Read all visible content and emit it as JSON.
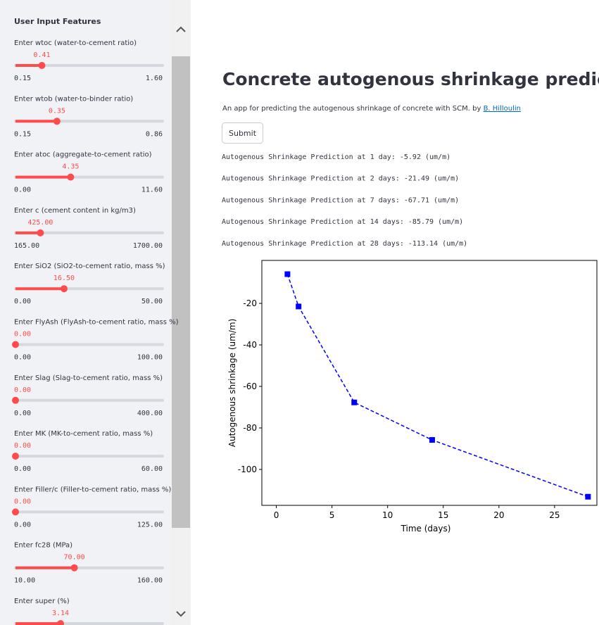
{
  "sidebar": {
    "title": "User Input Features",
    "sliders": [
      {
        "label": "Enter wtoc (water-to-cement ratio)",
        "value": 0.41,
        "min": 0.15,
        "max": {
          "value": 1.6,
          "label": "1.60"
        }
      },
      {
        "label": "Enter wtob (water-to-binder ratio)",
        "value": 0.35,
        "min": 0.15,
        "max": 0.86
      },
      {
        "label": "Enter atoc (aggregate-to-cement ratio)",
        "value": 4.35,
        "min": {
          "value": 0,
          "label": "0.00"
        },
        "max": {
          "value": 11.6,
          "label": "11.60"
        }
      },
      {
        "label": "Enter c (cement content in kg/m3)",
        "value": {
          "value": 425,
          "label": "425.00"
        },
        "min": {
          "value": 165,
          "label": "165.00"
        },
        "max": {
          "value": 1700,
          "label": "1700.00"
        }
      },
      {
        "label": "Enter SiO2 (SiO2-to-cement ratio, mass %)",
        "value": {
          "value": 16.5,
          "label": "16.50"
        },
        "min": {
          "value": 0,
          "label": "0.00"
        },
        "max": {
          "value": 50,
          "label": "50.00"
        }
      },
      {
        "label": "Enter FlyAsh (FlyAsh-to-cement ratio, mass %)",
        "value": {
          "value": 0,
          "label": "0.00"
        },
        "min": {
          "value": 0,
          "label": "0.00"
        },
        "max": {
          "value": 100,
          "label": "100.00"
        }
      },
      {
        "label": "Enter Slag (Slag-to-cement ratio, mass %)",
        "value": {
          "value": 0,
          "label": "0.00"
        },
        "min": {
          "value": 0,
          "label": "0.00"
        },
        "max": {
          "value": 400,
          "label": "400.00"
        }
      },
      {
        "label": "Enter MK (MK-to-cement ratio, mass %)",
        "value": {
          "value": 0,
          "label": "0.00"
        },
        "min": {
          "value": 0,
          "label": "0.00"
        },
        "max": {
          "value": 60,
          "label": "60.00"
        }
      },
      {
        "label": "Enter Filler/c (Filler-to-cement ratio, mass %)",
        "value": {
          "value": 0,
          "label": "0.00"
        },
        "min": {
          "value": 0,
          "label": "0.00"
        },
        "max": {
          "value": 125,
          "label": "125.00"
        }
      },
      {
        "label": "Enter fc28 (MPa)",
        "value": {
          "value": 70,
          "label": "70.00"
        },
        "min": {
          "value": 10,
          "label": "10.00"
        },
        "max": {
          "value": 160,
          "label": "160.00"
        }
      },
      {
        "label": "Enter super (%)",
        "value": 3.14
      }
    ]
  },
  "main": {
    "title": "Concrete autogenous shrinkage prediction",
    "description": "An app for predicting the autogenous shrinkage of concrete with SCM. by ",
    "link": "B. Hilloulin",
    "button": "Submit",
    "predictions": [
      "Autogenous Shrinkage Prediction at 1 day:  -5.92 (um/m)",
      "Autogenous Shrinkage Prediction at 2 days:  -21.49 (um/m)",
      "Autogenous Shrinkage Prediction at 7 days:  -67.71 (um/m)",
      "Autogenous Shrinkage Prediction at 14 days:  -85.79 (um/m)",
      "Autogenous Shrinkage Prediction at 28 days:  -113.14 (um/m)"
    ]
  },
  "chart_data": {
    "type": "line",
    "x_label": "Time (days)",
    "y_label": "Autogenous shrinkage (um/m)",
    "x": [
      1,
      2,
      7,
      14,
      28
    ],
    "series": [
      {
        "color": "#0000ff",
        "values": [
          -5.92,
          -21.49,
          -67.71,
          -85.79,
          -113.14
        ]
      }
    ],
    "xlim": [
      -1.3,
      28.8
    ],
    "ylim": [
      -117.3,
      0.7
    ],
    "xticks": [
      0,
      5,
      10,
      15,
      20,
      25
    ],
    "yticks": [
      -20,
      -40,
      -60,
      -80,
      -100
    ]
  }
}
